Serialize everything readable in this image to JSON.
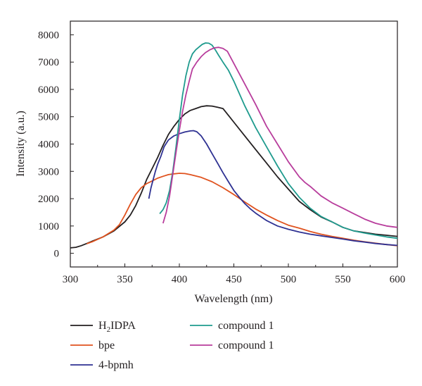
{
  "chart_data": {
    "type": "line",
    "xlabel": "Wavelength (nm)",
    "ylabel": "Intensity (a.u.)",
    "xlim": [
      300,
      600
    ],
    "ylim": [
      -500,
      8500
    ],
    "x_ticks": [
      300,
      350,
      400,
      450,
      500,
      550,
      600
    ],
    "y_ticks": [
      0,
      1000,
      2000,
      3000,
      4000,
      5000,
      6000,
      7000,
      8000
    ],
    "grid": false,
    "legend_position": "bottom",
    "series": [
      {
        "name": "H2IDPA",
        "color": "#231f20",
        "points": [
          [
            300,
            200
          ],
          [
            305,
            220
          ],
          [
            310,
            280
          ],
          [
            315,
            360
          ],
          [
            320,
            440
          ],
          [
            330,
            600
          ],
          [
            340,
            820
          ],
          [
            350,
            1150
          ],
          [
            355,
            1400
          ],
          [
            360,
            1750
          ],
          [
            365,
            2200
          ],
          [
            370,
            2700
          ],
          [
            375,
            3100
          ],
          [
            380,
            3500
          ],
          [
            385,
            3950
          ],
          [
            390,
            4350
          ],
          [
            395,
            4650
          ],
          [
            400,
            4900
          ],
          [
            405,
            5100
          ],
          [
            410,
            5230
          ],
          [
            415,
            5300
          ],
          [
            420,
            5370
          ],
          [
            425,
            5400
          ],
          [
            430,
            5390
          ],
          [
            435,
            5350
          ],
          [
            440,
            5300
          ],
          [
            445,
            5050
          ],
          [
            450,
            4800
          ],
          [
            460,
            4300
          ],
          [
            470,
            3800
          ],
          [
            480,
            3300
          ],
          [
            490,
            2800
          ],
          [
            500,
            2350
          ],
          [
            510,
            1900
          ],
          [
            520,
            1600
          ],
          [
            530,
            1330
          ],
          [
            540,
            1150
          ],
          [
            550,
            950
          ],
          [
            560,
            820
          ],
          [
            570,
            760
          ],
          [
            580,
            700
          ],
          [
            590,
            660
          ],
          [
            600,
            620
          ]
        ]
      },
      {
        "name": "bpe",
        "color": "#e0531f",
        "points": [
          [
            315,
            350
          ],
          [
            320,
            420
          ],
          [
            330,
            600
          ],
          [
            340,
            850
          ],
          [
            345,
            1050
          ],
          [
            350,
            1400
          ],
          [
            355,
            1800
          ],
          [
            360,
            2150
          ],
          [
            365,
            2400
          ],
          [
            370,
            2550
          ],
          [
            375,
            2650
          ],
          [
            380,
            2750
          ],
          [
            385,
            2820
          ],
          [
            390,
            2880
          ],
          [
            395,
            2910
          ],
          [
            400,
            2930
          ],
          [
            405,
            2920
          ],
          [
            410,
            2880
          ],
          [
            420,
            2780
          ],
          [
            430,
            2620
          ],
          [
            440,
            2400
          ],
          [
            450,
            2150
          ],
          [
            460,
            1880
          ],
          [
            470,
            1620
          ],
          [
            480,
            1400
          ],
          [
            490,
            1200
          ],
          [
            500,
            1030
          ],
          [
            510,
            920
          ],
          [
            520,
            800
          ],
          [
            530,
            700
          ],
          [
            540,
            620
          ],
          [
            550,
            550
          ],
          [
            560,
            480
          ],
          [
            570,
            420
          ],
          [
            580,
            370
          ],
          [
            590,
            320
          ],
          [
            600,
            280
          ]
        ]
      },
      {
        "name": "4-bpmh",
        "color": "#2e3192",
        "points": [
          [
            372,
            2000
          ],
          [
            374,
            2400
          ],
          [
            376,
            2700
          ],
          [
            378,
            3000
          ],
          [
            380,
            3250
          ],
          [
            383,
            3550
          ],
          [
            386,
            3900
          ],
          [
            390,
            4150
          ],
          [
            395,
            4300
          ],
          [
            400,
            4380
          ],
          [
            405,
            4440
          ],
          [
            410,
            4480
          ],
          [
            413,
            4490
          ],
          [
            416,
            4450
          ],
          [
            420,
            4300
          ],
          [
            425,
            4000
          ],
          [
            430,
            3650
          ],
          [
            435,
            3300
          ],
          [
            440,
            2950
          ],
          [
            445,
            2620
          ],
          [
            450,
            2300
          ],
          [
            455,
            2050
          ],
          [
            460,
            1820
          ],
          [
            465,
            1630
          ],
          [
            470,
            1470
          ],
          [
            480,
            1200
          ],
          [
            490,
            1000
          ],
          [
            500,
            880
          ],
          [
            510,
            780
          ],
          [
            520,
            700
          ],
          [
            530,
            640
          ],
          [
            540,
            580
          ],
          [
            550,
            520
          ],
          [
            560,
            460
          ],
          [
            570,
            410
          ],
          [
            580,
            360
          ],
          [
            590,
            320
          ],
          [
            600,
            290
          ]
        ]
      },
      {
        "name": "compound 1",
        "color": "#1f9b8e",
        "points": [
          [
            382,
            1450
          ],
          [
            385,
            1600
          ],
          [
            388,
            1850
          ],
          [
            391,
            2300
          ],
          [
            394,
            3000
          ],
          [
            397,
            3900
          ],
          [
            400,
            4900
          ],
          [
            403,
            5800
          ],
          [
            406,
            6500
          ],
          [
            409,
            7000
          ],
          [
            412,
            7300
          ],
          [
            415,
            7450
          ],
          [
            418,
            7550
          ],
          [
            421,
            7650
          ],
          [
            424,
            7700
          ],
          [
            427,
            7690
          ],
          [
            430,
            7620
          ],
          [
            433,
            7450
          ],
          [
            436,
            7250
          ],
          [
            440,
            7000
          ],
          [
            445,
            6700
          ],
          [
            450,
            6300
          ],
          [
            460,
            5400
          ],
          [
            470,
            4600
          ],
          [
            480,
            3900
          ],
          [
            490,
            3200
          ],
          [
            500,
            2550
          ],
          [
            510,
            2050
          ],
          [
            520,
            1650
          ],
          [
            530,
            1350
          ],
          [
            540,
            1150
          ],
          [
            550,
            950
          ],
          [
            560,
            820
          ],
          [
            570,
            740
          ],
          [
            580,
            670
          ],
          [
            590,
            600
          ],
          [
            600,
            550
          ]
        ]
      },
      {
        "name": "compound 1",
        "color": "#b83d9c",
        "points": [
          [
            385,
            1100
          ],
          [
            388,
            1500
          ],
          [
            391,
            2100
          ],
          [
            394,
            2900
          ],
          [
            397,
            3700
          ],
          [
            400,
            4500
          ],
          [
            403,
            5200
          ],
          [
            406,
            5800
          ],
          [
            409,
            6300
          ],
          [
            412,
            6750
          ],
          [
            416,
            7000
          ],
          [
            420,
            7200
          ],
          [
            424,
            7350
          ],
          [
            428,
            7450
          ],
          [
            432,
            7520
          ],
          [
            436,
            7540
          ],
          [
            440,
            7500
          ],
          [
            444,
            7400
          ],
          [
            448,
            7100
          ],
          [
            452,
            6800
          ],
          [
            460,
            6200
          ],
          [
            470,
            5450
          ],
          [
            480,
            4650
          ],
          [
            490,
            4000
          ],
          [
            500,
            3350
          ],
          [
            510,
            2800
          ],
          [
            515,
            2600
          ],
          [
            520,
            2450
          ],
          [
            530,
            2100
          ],
          [
            540,
            1850
          ],
          [
            550,
            1650
          ],
          [
            560,
            1450
          ],
          [
            570,
            1250
          ],
          [
            580,
            1100
          ],
          [
            590,
            1000
          ],
          [
            600,
            950
          ]
        ]
      }
    ]
  },
  "legend": [
    {
      "label_main": "H",
      "label_sub": "2",
      "label_rest": "IDPA",
      "color": "#231f20",
      "column": 0,
      "row": 0
    },
    {
      "label_main": "bpe",
      "label_sub": "",
      "label_rest": "",
      "color": "#e0531f",
      "column": 0,
      "row": 1
    },
    {
      "label_main": "4-bpmh",
      "label_sub": "",
      "label_rest": "",
      "color": "#2e3192",
      "column": 0,
      "row": 2
    },
    {
      "label_main": "compound 1",
      "label_sub": "",
      "label_rest": "",
      "color": "#1f9b8e",
      "column": 1,
      "row": 0
    },
    {
      "label_main": "compound 1",
      "label_sub": "",
      "label_rest": "",
      "color": "#b83d9c",
      "column": 1,
      "row": 1
    }
  ]
}
